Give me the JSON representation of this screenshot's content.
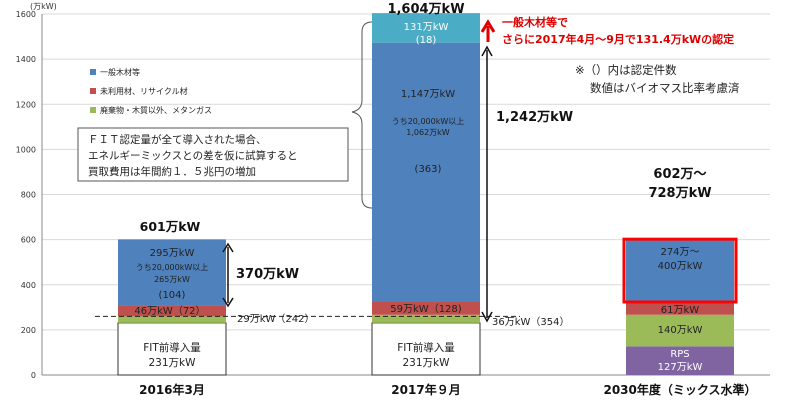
{
  "chart_data": {
    "type": "bar",
    "stacked": true,
    "y_unit": "(万kW)",
    "ylim": [
      0,
      1600
    ],
    "yticks": [
      0,
      200,
      400,
      600,
      800,
      1000,
      1200,
      1400,
      1600
    ],
    "categories": [
      "2016年3月",
      "2017年９月",
      "2030年度（ミックス水準）"
    ],
    "series": [
      {
        "name": "RPS",
        "color": "#8064a2",
        "values": [
          0,
          0,
          127
        ]
      },
      {
        "name": "FIT前導入量",
        "color": "#ffffff",
        "values": [
          231,
          231,
          0
        ]
      },
      {
        "name": "廃棄物・木質以外、メタンガス",
        "color": "#9bbb59",
        "values": [
          29,
          36,
          140
        ]
      },
      {
        "name": "未利用材、リサイクル材",
        "color": "#c0504d",
        "values": [
          46,
          59,
          61
        ]
      },
      {
        "name": "一般木材等",
        "color": "#4f81bd",
        "values": [
          295,
          1147,
          274
        ]
      },
      {
        "name": "一般木材等（2017年4月～9月認定分）",
        "color": "#4bacc6",
        "values": [
          0,
          131,
          0
        ]
      }
    ],
    "range_2030": [
      602,
      728
    ],
    "legend": [
      {
        "label": "一般木材等",
        "color": "#4f81bd"
      },
      {
        "label": "未利用材、リサイクル材",
        "color": "#c0504d"
      },
      {
        "label": "廃棄物・木質以外、メタンガス",
        "color": "#9bbb59"
      }
    ],
    "callout_lines": [
      "ＦＩＴ認定量が全て導入された場合、",
      "エネルギーミックスとの差を仮に試算すると",
      "買取費用は年間約１．５兆円の増加"
    ],
    "note_lines": [
      "※（）内は認定件数",
      "数値はバイオマス比率考慮済"
    ],
    "red_note_lines": [
      "一般木材等で",
      "さらに2017年4月～9月で131.4万kWの認定"
    ],
    "bars": [
      {
        "total_label": "601万kW",
        "fit_pre_lines": [
          "FIT前導入量",
          "231万kW"
        ],
        "green_label": "29万kW（242）",
        "red_label": "46万kW（72）",
        "blue_lines": [
          "295万kW",
          "うち20,000kW以上",
          "265万kW",
          "(104)"
        ],
        "arrow_label": "370万kW"
      },
      {
        "total_label": "1,604万kW",
        "fit_pre_lines": [
          "FIT前導入量",
          "231万kW"
        ],
        "green_label": "36万kW（354）",
        "red_label": "59万kW（128)",
        "blue_lines": [
          "1,147万kW",
          "うち20,000kW以上",
          "1,062万kW",
          "(363)"
        ],
        "cyan_lines": [
          "131万kW",
          "(18)"
        ],
        "arrow_label": "1,242万kW"
      },
      {
        "total_label_lines": [
          "602万～",
          "728万kW"
        ],
        "rps_lines": [
          "RPS",
          "127万kW"
        ],
        "green_label": "140万kW",
        "red_label": "61万kW",
        "blue_lines": [
          "274万～",
          "400万kW"
        ]
      }
    ]
  }
}
